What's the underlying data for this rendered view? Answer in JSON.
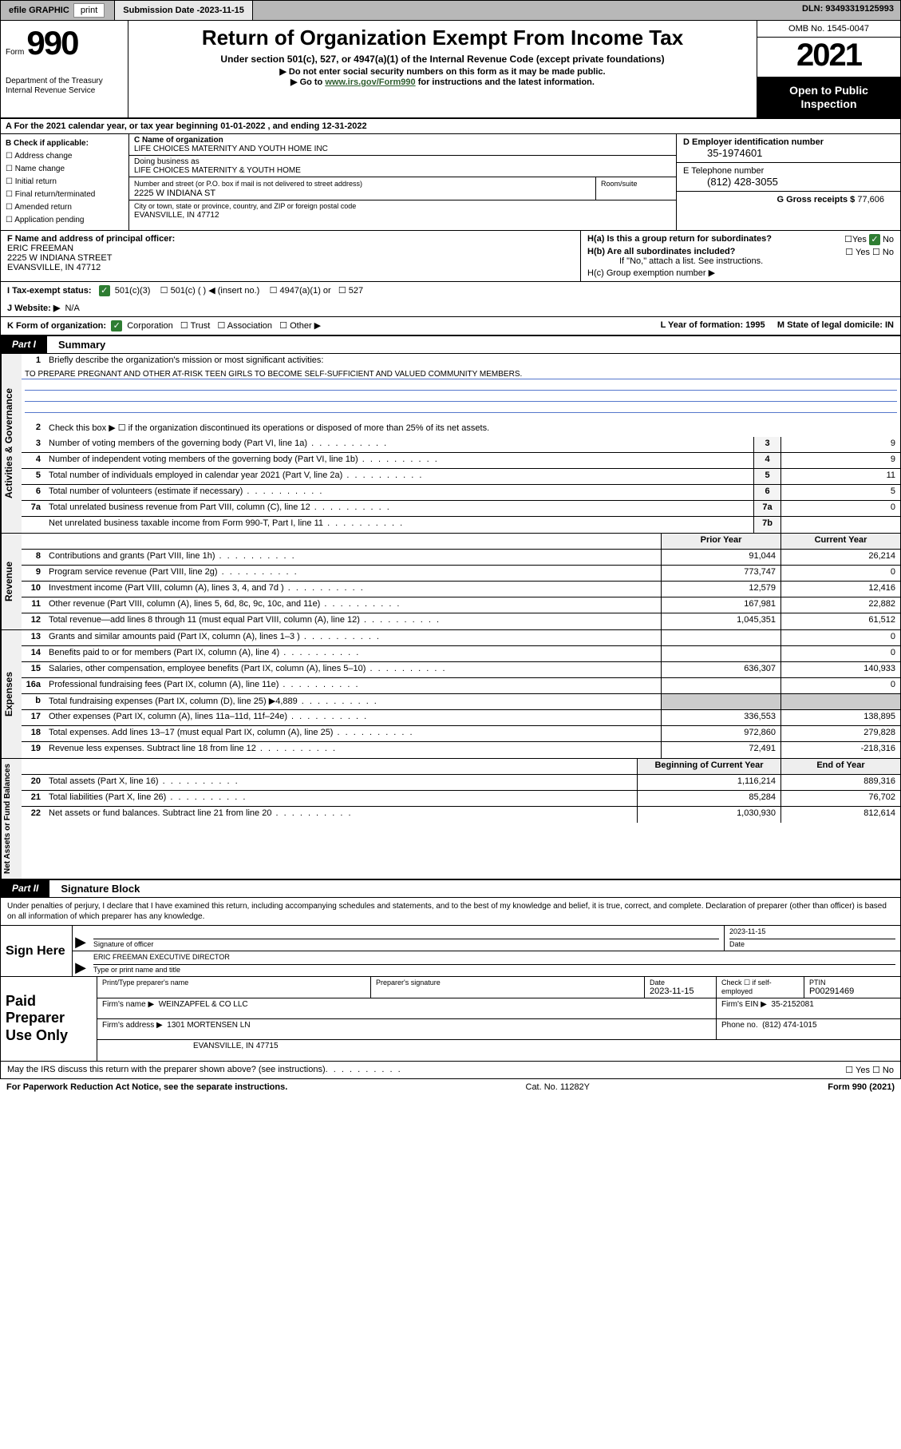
{
  "topbar": {
    "efile": "efile GRAPHIC",
    "print": "print",
    "submission_label": "Submission Date - ",
    "submission_date": "2023-11-15",
    "dln": "DLN: 93493319125993"
  },
  "header": {
    "form_label": "Form",
    "form_number": "990",
    "title": "Return of Organization Exempt From Income Tax",
    "subtitle1": "Under section 501(c), 527, or 4947(a)(1) of the Internal Revenue Code (except private foundations)",
    "subtitle2": "Do not enter social security numbers on this form as it may be made public.",
    "subtitle3_pre": "Go to ",
    "subtitle3_link": "www.irs.gov/Form990",
    "subtitle3_post": " for instructions and the latest information.",
    "dept": "Department of the Treasury\nInternal Revenue Service",
    "omb": "OMB No. 1545-0047",
    "year": "2021",
    "inspection": "Open to Public Inspection"
  },
  "rowA": "A For the 2021 calendar year, or tax year beginning 01-01-2022   , and ending 12-31-2022",
  "sectionB": {
    "label": "B Check if applicable:",
    "items": [
      "Address change",
      "Name change",
      "Initial return",
      "Final return/terminated",
      "Amended return",
      "Application pending"
    ]
  },
  "sectionC": {
    "name_label": "C Name of organization",
    "name": "LIFE CHOICES MATERNITY AND YOUTH HOME INC",
    "dba_label": "Doing business as",
    "dba": "LIFE CHOICES MATERNITY & YOUTH HOME",
    "street_label": "Number and street (or P.O. box if mail is not delivered to street address)",
    "street": "2225 W INDIANA ST",
    "room_label": "Room/suite",
    "room": "",
    "city_label": "City or town, state or province, country, and ZIP or foreign postal code",
    "city": "EVANSVILLE, IN  47712"
  },
  "sectionD": {
    "label": "D Employer identification number",
    "value": "35-1974601"
  },
  "sectionE": {
    "label": "E Telephone number",
    "value": "(812) 428-3055"
  },
  "sectionG": {
    "label": "G Gross receipts $",
    "value": "77,606"
  },
  "sectionF": {
    "label": "F Name and address of principal officer:",
    "name": "ERIC FREEMAN",
    "street": "2225 W INDIANA STREET",
    "city": "EVANSVILLE, IN  47712"
  },
  "sectionH": {
    "a": "H(a)  Is this a group return for subordinates?",
    "a_ans": "No",
    "b": "H(b)  Are all subordinates included?",
    "b_note": "If \"No,\" attach a list. See instructions.",
    "c": "H(c)  Group exemption number ▶"
  },
  "rowI": {
    "label": "I  Tax-exempt status:",
    "opts": [
      "501(c)(3)",
      "501(c) (  ) ◀ (insert no.)",
      "4947(a)(1) or",
      "527"
    ]
  },
  "rowJ": {
    "label": "J  Website: ▶",
    "value": "N/A"
  },
  "rowK": {
    "label": "K Form of organization:",
    "opts": [
      "Corporation",
      "Trust",
      "Association",
      "Other ▶"
    ],
    "L": "L Year of formation: 1995",
    "M": "M State of legal domicile: IN"
  },
  "part1": {
    "label": "Part I",
    "title": "Summary"
  },
  "summary": {
    "q1": "Briefly describe the organization's mission or most significant activities:",
    "mission": "TO PREPARE PREGNANT AND OTHER AT-RISK TEEN GIRLS TO BECOME SELF-SUFFICIENT AND VALUED COMMUNITY MEMBERS.",
    "q2": "Check this box ▶ ☐  if the organization discontinued its operations or disposed of more than 25% of its net assets.",
    "lines_gov": [
      {
        "n": "3",
        "d": "Number of voting members of the governing body (Part VI, line 1a)",
        "box": "3",
        "v": "9"
      },
      {
        "n": "4",
        "d": "Number of independent voting members of the governing body (Part VI, line 1b)",
        "box": "4",
        "v": "9"
      },
      {
        "n": "5",
        "d": "Total number of individuals employed in calendar year 2021 (Part V, line 2a)",
        "box": "5",
        "v": "11"
      },
      {
        "n": "6",
        "d": "Total number of volunteers (estimate if necessary)",
        "box": "6",
        "v": "5"
      },
      {
        "n": "7a",
        "d": "Total unrelated business revenue from Part VIII, column (C), line 12",
        "box": "7a",
        "v": "0"
      },
      {
        "n": "",
        "d": "Net unrelated business taxable income from Form 990-T, Part I, line 11",
        "box": "7b",
        "v": ""
      }
    ],
    "col_prior": "Prior Year",
    "col_curr": "Current Year",
    "revenue": [
      {
        "n": "8",
        "d": "Contributions and grants (Part VIII, line 1h)",
        "p": "91,044",
        "c": "26,214"
      },
      {
        "n": "9",
        "d": "Program service revenue (Part VIII, line 2g)",
        "p": "773,747",
        "c": "0"
      },
      {
        "n": "10",
        "d": "Investment income (Part VIII, column (A), lines 3, 4, and 7d )",
        "p": "12,579",
        "c": "12,416"
      },
      {
        "n": "11",
        "d": "Other revenue (Part VIII, column (A), lines 5, 6d, 8c, 9c, 10c, and 11e)",
        "p": "167,981",
        "c": "22,882"
      },
      {
        "n": "12",
        "d": "Total revenue—add lines 8 through 11 (must equal Part VIII, column (A), line 12)",
        "p": "1,045,351",
        "c": "61,512"
      }
    ],
    "expenses": [
      {
        "n": "13",
        "d": "Grants and similar amounts paid (Part IX, column (A), lines 1–3 )",
        "p": "",
        "c": "0"
      },
      {
        "n": "14",
        "d": "Benefits paid to or for members (Part IX, column (A), line 4)",
        "p": "",
        "c": "0"
      },
      {
        "n": "15",
        "d": "Salaries, other compensation, employee benefits (Part IX, column (A), lines 5–10)",
        "p": "636,307",
        "c": "140,933"
      },
      {
        "n": "16a",
        "d": "Professional fundraising fees (Part IX, column (A), line 11e)",
        "p": "",
        "c": "0"
      },
      {
        "n": "b",
        "d": "Total fundraising expenses (Part IX, column (D), line 25) ▶4,889",
        "p": "GREY",
        "c": "GREY"
      },
      {
        "n": "17",
        "d": "Other expenses (Part IX, column (A), lines 11a–11d, 11f–24e)",
        "p": "336,553",
        "c": "138,895"
      },
      {
        "n": "18",
        "d": "Total expenses. Add lines 13–17 (must equal Part IX, column (A), line 25)",
        "p": "972,860",
        "c": "279,828"
      },
      {
        "n": "19",
        "d": "Revenue less expenses. Subtract line 18 from line 12",
        "p": "72,491",
        "c": "-218,316"
      }
    ],
    "col_begin": "Beginning of Current Year",
    "col_end": "End of Year",
    "netassets": [
      {
        "n": "20",
        "d": "Total assets (Part X, line 16)",
        "p": "1,116,214",
        "c": "889,316"
      },
      {
        "n": "21",
        "d": "Total liabilities (Part X, line 26)",
        "p": "85,284",
        "c": "76,702"
      },
      {
        "n": "22",
        "d": "Net assets or fund balances. Subtract line 21 from line 20",
        "p": "1,030,930",
        "c": "812,614"
      }
    ]
  },
  "vlabels": {
    "gov": "Activities & Governance",
    "rev": "Revenue",
    "exp": "Expenses",
    "net": "Net Assets or Fund Balances"
  },
  "part2": {
    "label": "Part II",
    "title": "Signature Block"
  },
  "sig": {
    "declare": "Under penalties of perjury, I declare that I have examined this return, including accompanying schedules and statements, and to the best of my knowledge and belief, it is true, correct, and complete. Declaration of preparer (other than officer) is based on all information of which preparer has any knowledge.",
    "sign_here": "Sign Here",
    "sig_label": "Signature of officer",
    "date_label": "Date",
    "date": "2023-11-15",
    "name_title": "ERIC FREEMAN  EXECUTIVE DIRECTOR",
    "name_label": "Type or print name and title"
  },
  "prep": {
    "label": "Paid Preparer Use Only",
    "r1": {
      "c1_lab": "Print/Type preparer's name",
      "c1": "",
      "c2_lab": "Preparer's signature",
      "c2": "",
      "c3_lab": "Date",
      "c3": "2023-11-15",
      "c4_lab": "Check ☐ if self-employed",
      "c4": "",
      "c5_lab": "PTIN",
      "c5": "P00291469"
    },
    "r2": {
      "firm_lab": "Firm's name    ▶",
      "firm": "WEINZAPFEL & CO LLC",
      "ein_lab": "Firm's EIN ▶",
      "ein": "35-2152081"
    },
    "r3": {
      "addr_lab": "Firm's address ▶",
      "addr": "1301 MORTENSEN LN",
      "phone_lab": "Phone no.",
      "phone": "(812) 474-1015"
    },
    "r4": {
      "addr2": "EVANSVILLE, IN  47715"
    }
  },
  "discuss": "May the IRS discuss this return with the preparer shown above? (see instructions)",
  "footer": {
    "left": "For Paperwork Reduction Act Notice, see the separate instructions.",
    "mid": "Cat. No. 11282Y",
    "right": "Form 990 (2021)"
  }
}
